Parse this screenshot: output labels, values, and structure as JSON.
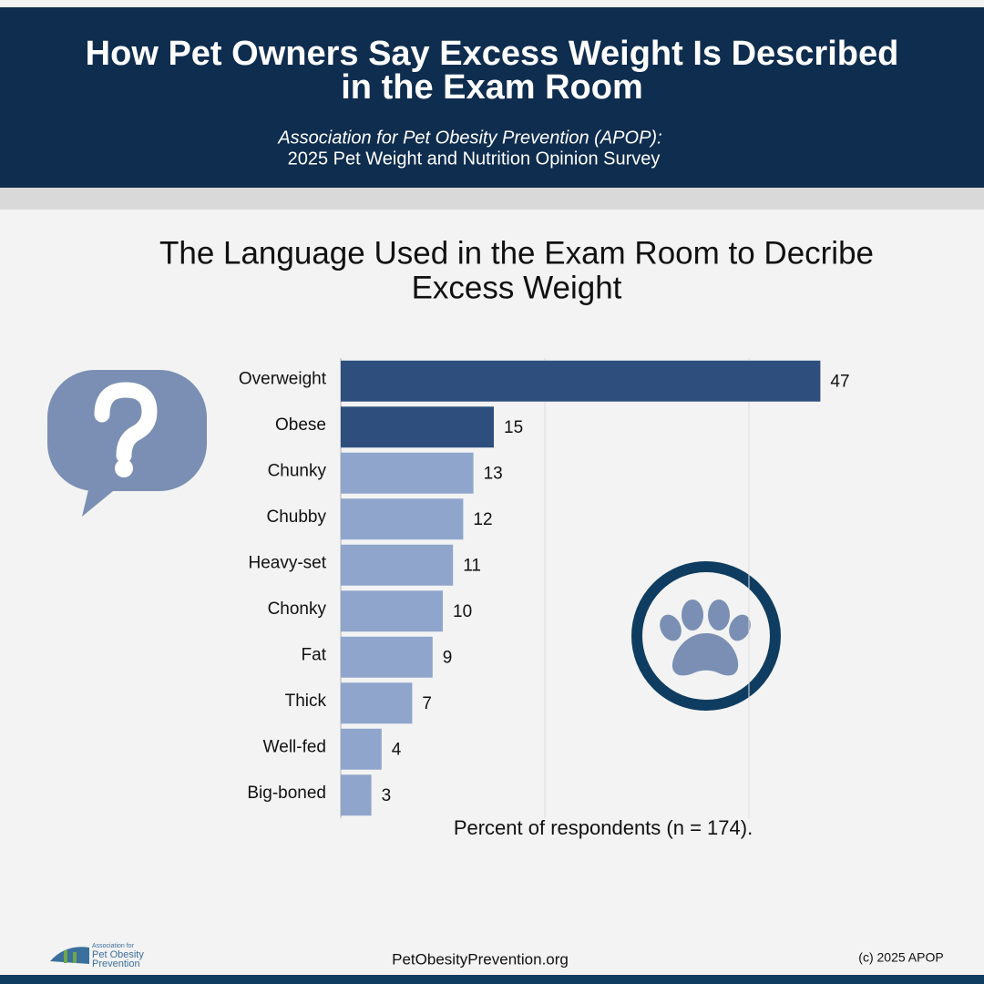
{
  "header": {
    "title_lines": [
      "How Pet Owners Say Excess Weight Is Described",
      "in the Exam Room"
    ],
    "subtitle_lines": [
      "Association for Pet Obesity Prevention (APOP):",
      "2025 Pet Weight and Nutrition Opinion Survey"
    ]
  },
  "chart_data": {
    "type": "hbar",
    "title_lines": [
      "The Language Used in the Exam Room to Decribe",
      "Excess Weight"
    ],
    "x_label": "Percent of respondents (n = 174).",
    "categories": [
      "Overweight",
      "Obese",
      "Chunky",
      "Chubby",
      "Heavy-set",
      "Chonky",
      "Fat",
      "Thick",
      "Well-fed",
      "Big-boned"
    ],
    "values": [
      47,
      15,
      13,
      12,
      11,
      10,
      9,
      7,
      4,
      3
    ],
    "colors": [
      "#2e4f7e",
      "#2e4f7e",
      "#8fa5cb",
      "#8fa5cb",
      "#8fa5cb",
      "#8fa5cb",
      "#8fa5cb",
      "#8fa5cb",
      "#8fa5cb",
      "#8fa5cb"
    ],
    "xlim": [
      0,
      50
    ],
    "xticks": [
      0,
      20,
      40
    ],
    "grid": true
  },
  "footer": {
    "logo_lines": [
      "Association for",
      "Pet Obesity",
      "Prevention"
    ],
    "website": "PetObesityPrevention.org",
    "copyright": "(c) 2025 APOP"
  }
}
